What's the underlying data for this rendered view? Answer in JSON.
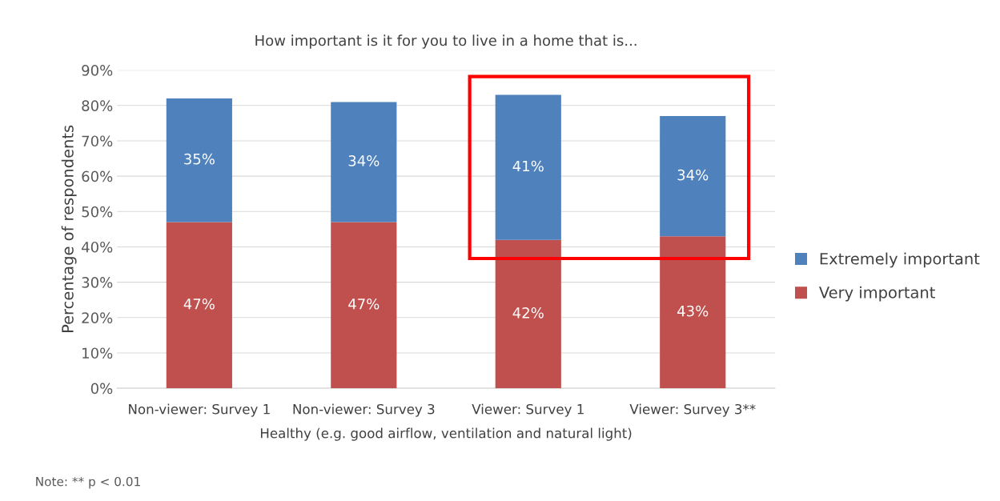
{
  "chart_data": {
    "type": "bar",
    "stacked": true,
    "title": "How important is it for you to live in a home that is...",
    "ylabel": "Percentage of respondents",
    "xlabel": "Healthy (e.g. good airflow, ventilation and natural light)",
    "categories": [
      "Non-viewer: Survey 1",
      "Non-viewer: Survey 3",
      "Viewer: Survey 1",
      "Viewer: Survey 3**"
    ],
    "series": [
      {
        "name": "Very important",
        "color": "#c0504d",
        "values": [
          47,
          47,
          42,
          43
        ],
        "value_labels": [
          "47%",
          "47%",
          "42%",
          "43%"
        ]
      },
      {
        "name": "Extremely important",
        "color": "#4f81bd",
        "values": [
          35,
          34,
          41,
          34
        ],
        "value_labels": [
          "35%",
          "34%",
          "41%",
          "34%"
        ]
      }
    ],
    "ylim": [
      0,
      90
    ],
    "yticks": [
      {
        "value": 0,
        "label": "0%"
      },
      {
        "value": 10,
        "label": "10%"
      },
      {
        "value": 20,
        "label": "20%"
      },
      {
        "value": 30,
        "label": "30%"
      },
      {
        "value": 40,
        "label": "40%"
      },
      {
        "value": 50,
        "label": "50%"
      },
      {
        "value": 60,
        "label": "60%"
      },
      {
        "value": 70,
        "label": "70%"
      },
      {
        "value": 80,
        "label": "80%"
      },
      {
        "value": 90,
        "label": "90%"
      }
    ],
    "grid": "y",
    "legend": "right",
    "annotations": [
      "Note: ** p < 0.01"
    ]
  }
}
